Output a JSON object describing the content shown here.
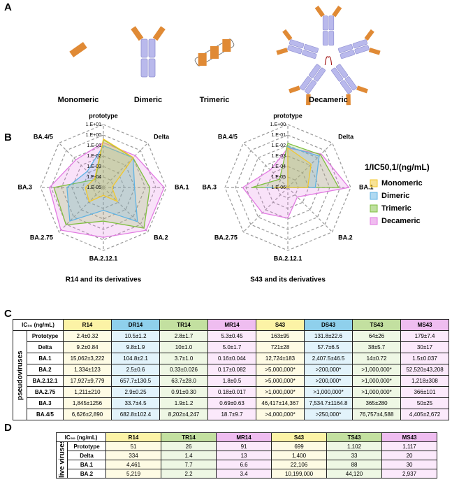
{
  "panel_a": {
    "label": "A",
    "items": [
      "Monomeric",
      "Dimeric",
      "Trimeric",
      "Decameric"
    ]
  },
  "panel_b_label": "B",
  "chart_data": [
    {
      "type": "radar",
      "caption": "R14 and its derivatives",
      "legend_title": "1/IC50,1/(ng/mL)",
      "log": true,
      "categories": [
        "prototype",
        "Delta",
        "BA.1",
        "BA.2",
        "BA.2.12.1",
        "BA.2.75",
        "BA.3",
        "BA.4/5"
      ],
      "rlim": [
        1e-05,
        10
      ],
      "rticks": [
        {
          "value": 10,
          "label": "1.E+01"
        },
        {
          "value": 1,
          "label": "1.E+00"
        },
        {
          "value": 0.1,
          "label": "1.E-01"
        },
        {
          "value": 0.01,
          "label": "1.E-02"
        },
        {
          "value": 0.001,
          "label": "1.E-03"
        },
        {
          "value": 0.0001,
          "label": "1.E-04"
        },
        {
          "value": 1e-05,
          "label": "1.E-05"
        }
      ],
      "series": [
        {
          "name": "Monomeric",
          "color": "#f2c72e",
          "values": [
            0.42,
            0.11,
            6.6e-05,
            0.00075,
            5.6e-05,
            0.00083,
            0.00054,
            0.00015
          ]
        },
        {
          "name": "Dimeric",
          "color": "#5fb3e4",
          "values": [
            0.095,
            0.1,
            0.0095,
            0.4,
            0.0015,
            0.34,
            0.03,
            0.0015
          ]
        },
        {
          "name": "Trimeric",
          "color": "#7fbf3f",
          "values": [
            0.36,
            0.1,
            0.27,
            3.0,
            0.016,
            1.1,
            0.53,
            0.00012
          ]
        },
        {
          "name": "Decameric",
          "color": "#e27ae2",
          "values": [
            0.19,
            0.2,
            6.3,
            5.9,
            0.56,
            5.6,
            1.4,
            0.053
          ]
        }
      ]
    },
    {
      "type": "radar",
      "caption": "S43 and its derivatives",
      "log": true,
      "categories": [
        "prototype",
        "Delta",
        "BA.1",
        "BA.2",
        "BA.2.12.1",
        "BA.2.75",
        "BA.3",
        "BA.4/5"
      ],
      "rlim": [
        1e-06,
        1
      ],
      "rticks": [
        {
          "value": 1,
          "label": "1.E+00"
        },
        {
          "value": 0.1,
          "label": "1.E-01"
        },
        {
          "value": 0.01,
          "label": "1.E-02"
        },
        {
          "value": 0.001,
          "label": "1.E-03"
        },
        {
          "value": 0.0001,
          "label": "1.E-04"
        },
        {
          "value": 1e-05,
          "label": "1.E-05"
        },
        {
          "value": 1e-06,
          "label": "1.E-06"
        }
      ],
      "series": [
        {
          "color": "#f2c72e",
          "values": [
            0.0061,
            0.0014,
            7.9e-05,
            1e-06,
            1e-06,
            1e-06,
            2.2e-05,
            1e-06
          ]
        },
        {
          "color": "#5fb3e4",
          "values": [
            0.0076,
            0.017,
            0.00042,
            1e-06,
            1e-06,
            1e-06,
            0.00013,
            1e-06
          ]
        },
        {
          "color": "#7fbf3f",
          "values": [
            0.016,
            0.026,
            0.071,
            1e-06,
            1e-06,
            1e-06,
            0.0027,
            1.3e-05
          ]
        },
        {
          "color": "#e27ae2",
          "values": [
            0.0056,
            0.033,
            0.67,
            1.9e-05,
            0.00082,
            0.0027,
            0.02,
            0.00023
          ]
        }
      ]
    }
  ],
  "table_c": {
    "label": "C",
    "group": "pseudoviruses",
    "header": [
      "IC₅₀ (ng/mL)",
      "R14",
      "DR14",
      "TR14",
      "MR14",
      "S43",
      "DS43",
      "TS43",
      "MS43"
    ],
    "rows": [
      [
        "Prototype",
        "2.4±0.32",
        "10.5±1.2",
        "2.8±1.7",
        "5.3±0.45",
        "163±95",
        "131.8±22.6",
        "64±26",
        "179±7.4"
      ],
      [
        "Delta",
        "9.2±0.84",
        "9.8±1.9",
        "10±1.0",
        "5.0±1.7",
        "721±28",
        "57.7±6.5",
        "38±5.7",
        "30±17"
      ],
      [
        "BA.1",
        "15,062±3,222",
        "104.8±2.1",
        "3.7±1.0",
        "0.16±0.044",
        "12,724±183",
        "2,407.5±46.5",
        "14±0.72",
        "1.5±0.037"
      ],
      [
        "BA.2",
        "1,334±123",
        "2.5±0.6",
        "0.33±0.026",
        "0.17±0.082",
        ">5,000,000*",
        ">200,000*",
        ">1,000,000*",
        "52,520±43,208"
      ],
      [
        "BA.2.12.1",
        "17,927±9,779",
        "657.7±130.5",
        "63.7±28.0",
        "1.8±0.5",
        ">5,000,000*",
        ">200,000*",
        ">1,000,000*",
        "1,218±308"
      ],
      [
        "BA.2.75",
        "1,211±210",
        "2.9±0.25",
        "0.91±0.30",
        "0.18±0.017",
        ">1,000,000*",
        ">1,000,000*",
        ">1,000,000*",
        "366±101"
      ],
      [
        "BA.3",
        "1,845±1256",
        "33.7±4.5",
        "1.9±1.2",
        "0.69±0.63",
        "46,417±14,367",
        "7,534.7±1164.8",
        "365±280",
        "50±25"
      ],
      [
        "BA.4/5",
        "6,626±2,890",
        "682.8±102.4",
        "8,202±4,247",
        "18.7±9.7",
        ">4,000,000*",
        ">250,000*",
        "76,757±4,588",
        "4,405±2,672"
      ]
    ]
  },
  "table_d": {
    "label": "D",
    "group": "live viruses",
    "header": [
      "IC₅₀ (ng/mL)",
      "R14",
      "TR14",
      "MR14",
      "S43",
      "TS43",
      "MS43"
    ],
    "rows": [
      [
        "Prototype",
        "51",
        "26",
        "91",
        "699",
        "1,102",
        "1,117"
      ],
      [
        "Delta",
        "334",
        "1.4",
        "13",
        "1,400",
        "33",
        "20"
      ],
      [
        "BA.1",
        "4,461",
        "7.7",
        "6.6",
        "22,106",
        "88",
        "30"
      ],
      [
        "BA.2",
        "5,219",
        "2.2",
        "3.4",
        "10,199,000",
        "44,120",
        "2,937"
      ]
    ]
  }
}
